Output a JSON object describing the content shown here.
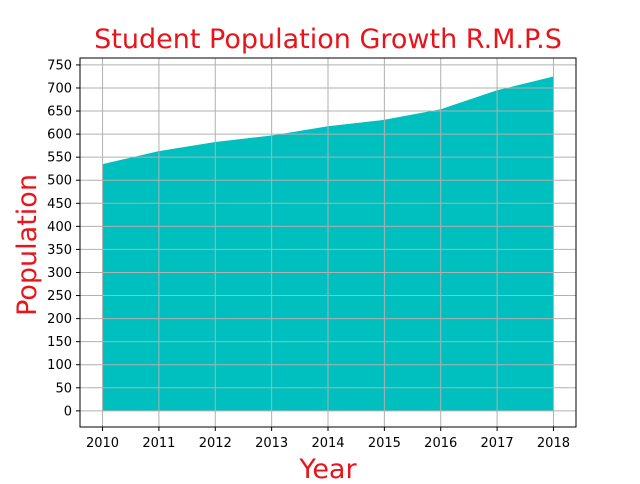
{
  "chart_data": {
    "type": "area",
    "title": "Student Population Growth R.M.P.S",
    "xlabel": "Year",
    "ylabel": "Population",
    "x": [
      2010,
      2011,
      2012,
      2013,
      2014,
      2015,
      2016,
      2017,
      2018
    ],
    "x_tick_labels": [
      "2010",
      "2011",
      "2012",
      "2013",
      "2014",
      "2015",
      "2016",
      "2017",
      "2018"
    ],
    "values": [
      535,
      563,
      583,
      597,
      617,
      631,
      654,
      695,
      725
    ],
    "ylim": [
      -35,
      765
    ],
    "xlim": [
      2009.6,
      2018.4
    ],
    "y_ticks": [
      0,
      50,
      100,
      150,
      200,
      250,
      300,
      350,
      400,
      450,
      500,
      550,
      600,
      650,
      700,
      750
    ],
    "y_tick_labels": [
      "0",
      "50",
      "100",
      "150",
      "200",
      "250",
      "300",
      "350",
      "400",
      "450",
      "500",
      "550",
      "600",
      "650",
      "700",
      "750"
    ],
    "grid": true,
    "colors": {
      "fill": "#00bfbf",
      "title": "#e8141c",
      "grid": "#b0b0b0",
      "axis": "#000000"
    }
  }
}
